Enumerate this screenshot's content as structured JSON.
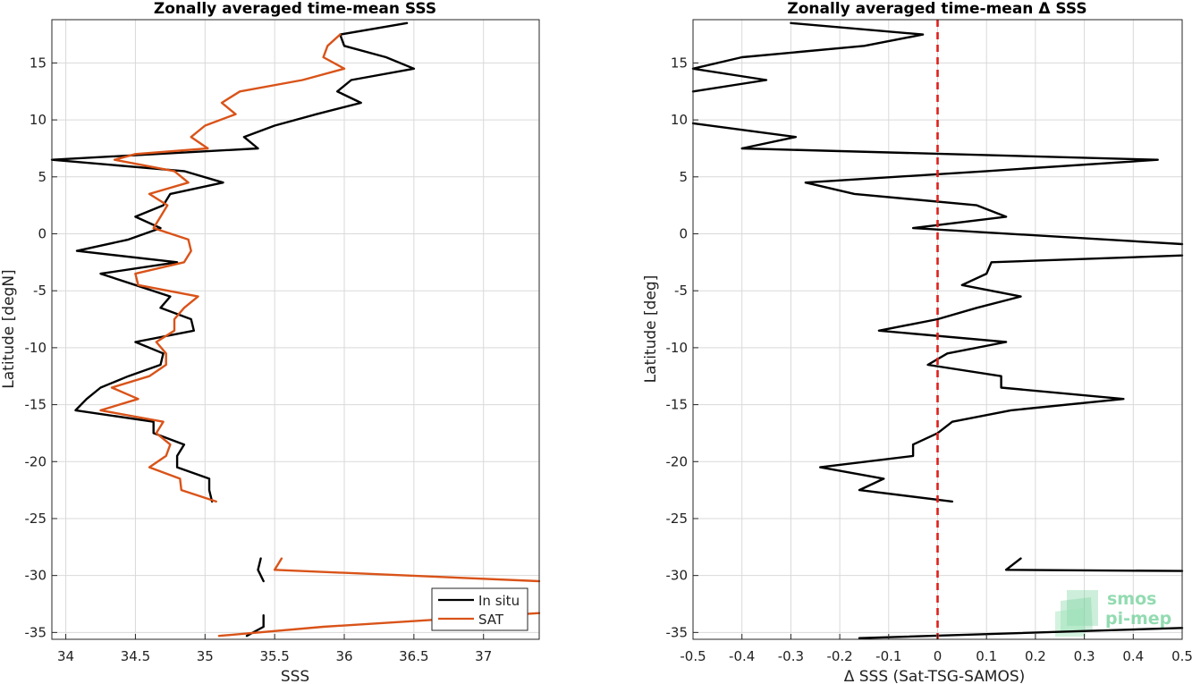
{
  "chart_data": [
    {
      "type": "line",
      "title": "Zonally averaged time-mean SSS",
      "xlabel": "SSS",
      "ylabel": "Latitude [degN]",
      "xlim": [
        33.9,
        37.4
      ],
      "ylim": [
        -35.6,
        18.8
      ],
      "xticks": [
        34,
        34.5,
        35,
        35.5,
        36,
        36.5,
        37
      ],
      "xtick_labels": [
        "34",
        "34.5",
        "35",
        "35.5",
        "36",
        "36.5",
        "37"
      ],
      "yticks": [
        15,
        10,
        5,
        0,
        -5,
        -10,
        -15,
        -20,
        -25,
        -30,
        -35
      ],
      "ytick_labels": [
        "15",
        "10",
        "5",
        "0",
        "-5",
        "-10",
        "-15",
        "-20",
        "-25",
        "-30",
        "-35"
      ],
      "grid": true,
      "legend": "bottom-right",
      "series": [
        {
          "name": "In situ",
          "color": "#000000",
          "segments": [
            [
              [
                36.45,
                18.5
              ],
              [
                35.97,
                17.5
              ],
              [
                36.0,
                16.5
              ],
              [
                36.3,
                15.5
              ],
              [
                36.5,
                14.5
              ],
              [
                36.05,
                13.5
              ],
              [
                35.95,
                12.5
              ],
              [
                36.12,
                11.5
              ],
              [
                35.8,
                10.5
              ],
              [
                35.5,
                9.5
              ],
              [
                35.28,
                8.5
              ],
              [
                35.38,
                7.5
              ],
              [
                33.9,
                6.5
              ],
              [
                34.85,
                5.5
              ],
              [
                35.13,
                4.5
              ],
              [
                34.75,
                3.5
              ],
              [
                34.7,
                2.5
              ],
              [
                34.5,
                1.5
              ],
              [
                34.68,
                0.5
              ],
              [
                34.45,
                -0.5
              ],
              [
                34.08,
                -1.5
              ],
              [
                34.8,
                -2.5
              ],
              [
                34.25,
                -3.5
              ],
              [
                34.5,
                -4.5
              ],
              [
                34.75,
                -5.5
              ],
              [
                34.68,
                -6.5
              ],
              [
                34.9,
                -7.5
              ],
              [
                34.92,
                -8.5
              ],
              [
                34.5,
                -9.5
              ],
              [
                34.7,
                -10.5
              ],
              [
                34.68,
                -11.5
              ],
              [
                34.45,
                -12.5
              ],
              [
                34.25,
                -13.5
              ],
              [
                34.15,
                -14.5
              ],
              [
                34.07,
                -15.5
              ],
              [
                34.63,
                -16.5
              ],
              [
                34.63,
                -17.5
              ],
              [
                34.85,
                -18.5
              ],
              [
                34.8,
                -19.5
              ],
              [
                34.8,
                -20.5
              ],
              [
                35.03,
                -21.5
              ],
              [
                35.03,
                -22.5
              ],
              [
                35.05,
                -23.5
              ]
            ],
            [
              [
                35.4,
                -28.5
              ],
              [
                35.38,
                -29.5
              ],
              [
                35.42,
                -30.5
              ]
            ],
            [
              [
                35.42,
                -33.5
              ],
              [
                35.42,
                -34.5
              ],
              [
                35.3,
                -35.3
              ]
            ]
          ]
        },
        {
          "name": "SAT",
          "color": "#d95319",
          "segments": [
            [
              [
                35.97,
                17.5
              ],
              [
                35.88,
                16.5
              ],
              [
                35.85,
                15.5
              ],
              [
                36.0,
                14.5
              ],
              [
                35.7,
                13.5
              ],
              [
                35.25,
                12.5
              ],
              [
                35.12,
                11.5
              ],
              [
                35.22,
                10.5
              ],
              [
                35.0,
                9.5
              ],
              [
                34.9,
                8.5
              ],
              [
                35.02,
                7.5
              ],
              [
                34.5,
                7.0
              ],
              [
                34.35,
                6.5
              ],
              [
                34.78,
                5.5
              ],
              [
                34.88,
                4.5
              ],
              [
                34.6,
                3.5
              ],
              [
                34.73,
                2.5
              ],
              [
                34.68,
                1.5
              ],
              [
                34.63,
                0.5
              ],
              [
                34.88,
                -0.5
              ],
              [
                34.9,
                -1.5
              ],
              [
                34.85,
                -2.5
              ],
              [
                34.5,
                -3.5
              ],
              [
                34.52,
                -4.5
              ],
              [
                34.95,
                -5.5
              ],
              [
                34.85,
                -6.5
              ],
              [
                34.78,
                -7.5
              ],
              [
                34.78,
                -8.5
              ],
              [
                34.65,
                -9.5
              ],
              [
                34.72,
                -10.5
              ],
              [
                34.72,
                -11.5
              ],
              [
                34.6,
                -12.5
              ],
              [
                34.33,
                -13.5
              ],
              [
                34.52,
                -14.5
              ],
              [
                34.25,
                -15.5
              ],
              [
                34.7,
                -16.5
              ],
              [
                34.65,
                -17.5
              ],
              [
                34.75,
                -18.5
              ],
              [
                34.72,
                -19.5
              ],
              [
                34.6,
                -20.5
              ],
              [
                34.82,
                -21.5
              ],
              [
                34.83,
                -22.5
              ],
              [
                35.08,
                -23.5
              ]
            ],
            [
              [
                35.55,
                -28.5
              ],
              [
                35.5,
                -29.5
              ],
              [
                37.4,
                -30.5
              ]
            ],
            [
              [
                37.4,
                -33.3
              ],
              [
                35.85,
                -34.5
              ],
              [
                35.1,
                -35.3
              ]
            ]
          ]
        }
      ]
    },
    {
      "type": "line",
      "title": "Zonally averaged time-mean Δ SSS",
      "xlabel": "Δ SSS (Sat-TSG-SAMOS)",
      "ylabel": "Latitude [deg]",
      "xlim": [
        -0.5,
        0.5
      ],
      "ylim": [
        -35.6,
        18.8
      ],
      "xticks": [
        -0.5,
        -0.4,
        -0.3,
        -0.2,
        -0.1,
        0,
        0.1,
        0.2,
        0.3,
        0.4,
        0.5
      ],
      "xtick_labels": [
        "-0.5",
        "-0.4",
        "-0.3",
        "-0.2",
        "-0.1",
        "0",
        "0.1",
        "0.2",
        "0.3",
        "0.4",
        "0.5"
      ],
      "yticks": [
        15,
        10,
        5,
        0,
        -5,
        -10,
        -15,
        -20,
        -25,
        -30,
        -35
      ],
      "ytick_labels": [
        "15",
        "10",
        "5",
        "0",
        "-5",
        "-10",
        "-15",
        "-20",
        "-25",
        "-30",
        "-35"
      ],
      "grid": true,
      "zero_line": {
        "x": 0,
        "color": "#e0201b",
        "style": "dashed"
      },
      "series": [
        {
          "color": "#000000",
          "segments": [
            [
              [
                -0.3,
                18.5
              ],
              [
                -0.03,
                17.5
              ],
              [
                -0.15,
                16.5
              ],
              [
                -0.4,
                15.5
              ],
              [
                -0.5,
                14.5
              ],
              [
                -0.35,
                13.5
              ],
              [
                -0.5,
                12.5
              ]
            ],
            [
              [
                -0.5,
                9.7
              ],
              [
                -0.29,
                8.5
              ],
              [
                -0.4,
                7.5
              ],
              [
                0.45,
                6.5
              ],
              [
                0.1,
                5.5
              ],
              [
                -0.27,
                4.5
              ],
              [
                -0.17,
                3.5
              ],
              [
                0.08,
                2.5
              ],
              [
                0.14,
                1.5
              ],
              [
                -0.05,
                0.5
              ],
              [
                0.5,
                -0.9
              ]
            ],
            [
              [
                0.5,
                -1.9
              ],
              [
                0.11,
                -2.5
              ],
              [
                0.1,
                -3.5
              ],
              [
                0.05,
                -4.5
              ],
              [
                0.17,
                -5.5
              ],
              [
                0.08,
                -6.5
              ],
              [
                0.0,
                -7.5
              ],
              [
                -0.12,
                -8.5
              ],
              [
                0.14,
                -9.5
              ],
              [
                0.02,
                -10.5
              ],
              [
                -0.02,
                -11.5
              ],
              [
                0.13,
                -12.5
              ],
              [
                0.13,
                -13.5
              ],
              [
                0.38,
                -14.5
              ],
              [
                0.15,
                -15.5
              ],
              [
                0.03,
                -16.5
              ],
              [
                0.0,
                -17.5
              ],
              [
                -0.05,
                -18.5
              ],
              [
                -0.05,
                -19.5
              ],
              [
                -0.24,
                -20.5
              ],
              [
                -0.11,
                -21.5
              ],
              [
                -0.16,
                -22.5
              ],
              [
                0.03,
                -23.5
              ]
            ],
            [
              [
                0.17,
                -28.5
              ],
              [
                0.14,
                -29.5
              ],
              [
                0.5,
                -29.6
              ]
            ],
            [
              [
                0.5,
                -34.6
              ],
              [
                -0.16,
                -35.5
              ]
            ]
          ]
        }
      ]
    }
  ],
  "legend": {
    "entries": [
      {
        "label": "In situ",
        "color": "#000000"
      },
      {
        "label": "SAT",
        "color": "#d95319"
      }
    ]
  },
  "logo": {
    "line1": "smos",
    "line2": "pi-mep",
    "color": "#6fcf97"
  }
}
